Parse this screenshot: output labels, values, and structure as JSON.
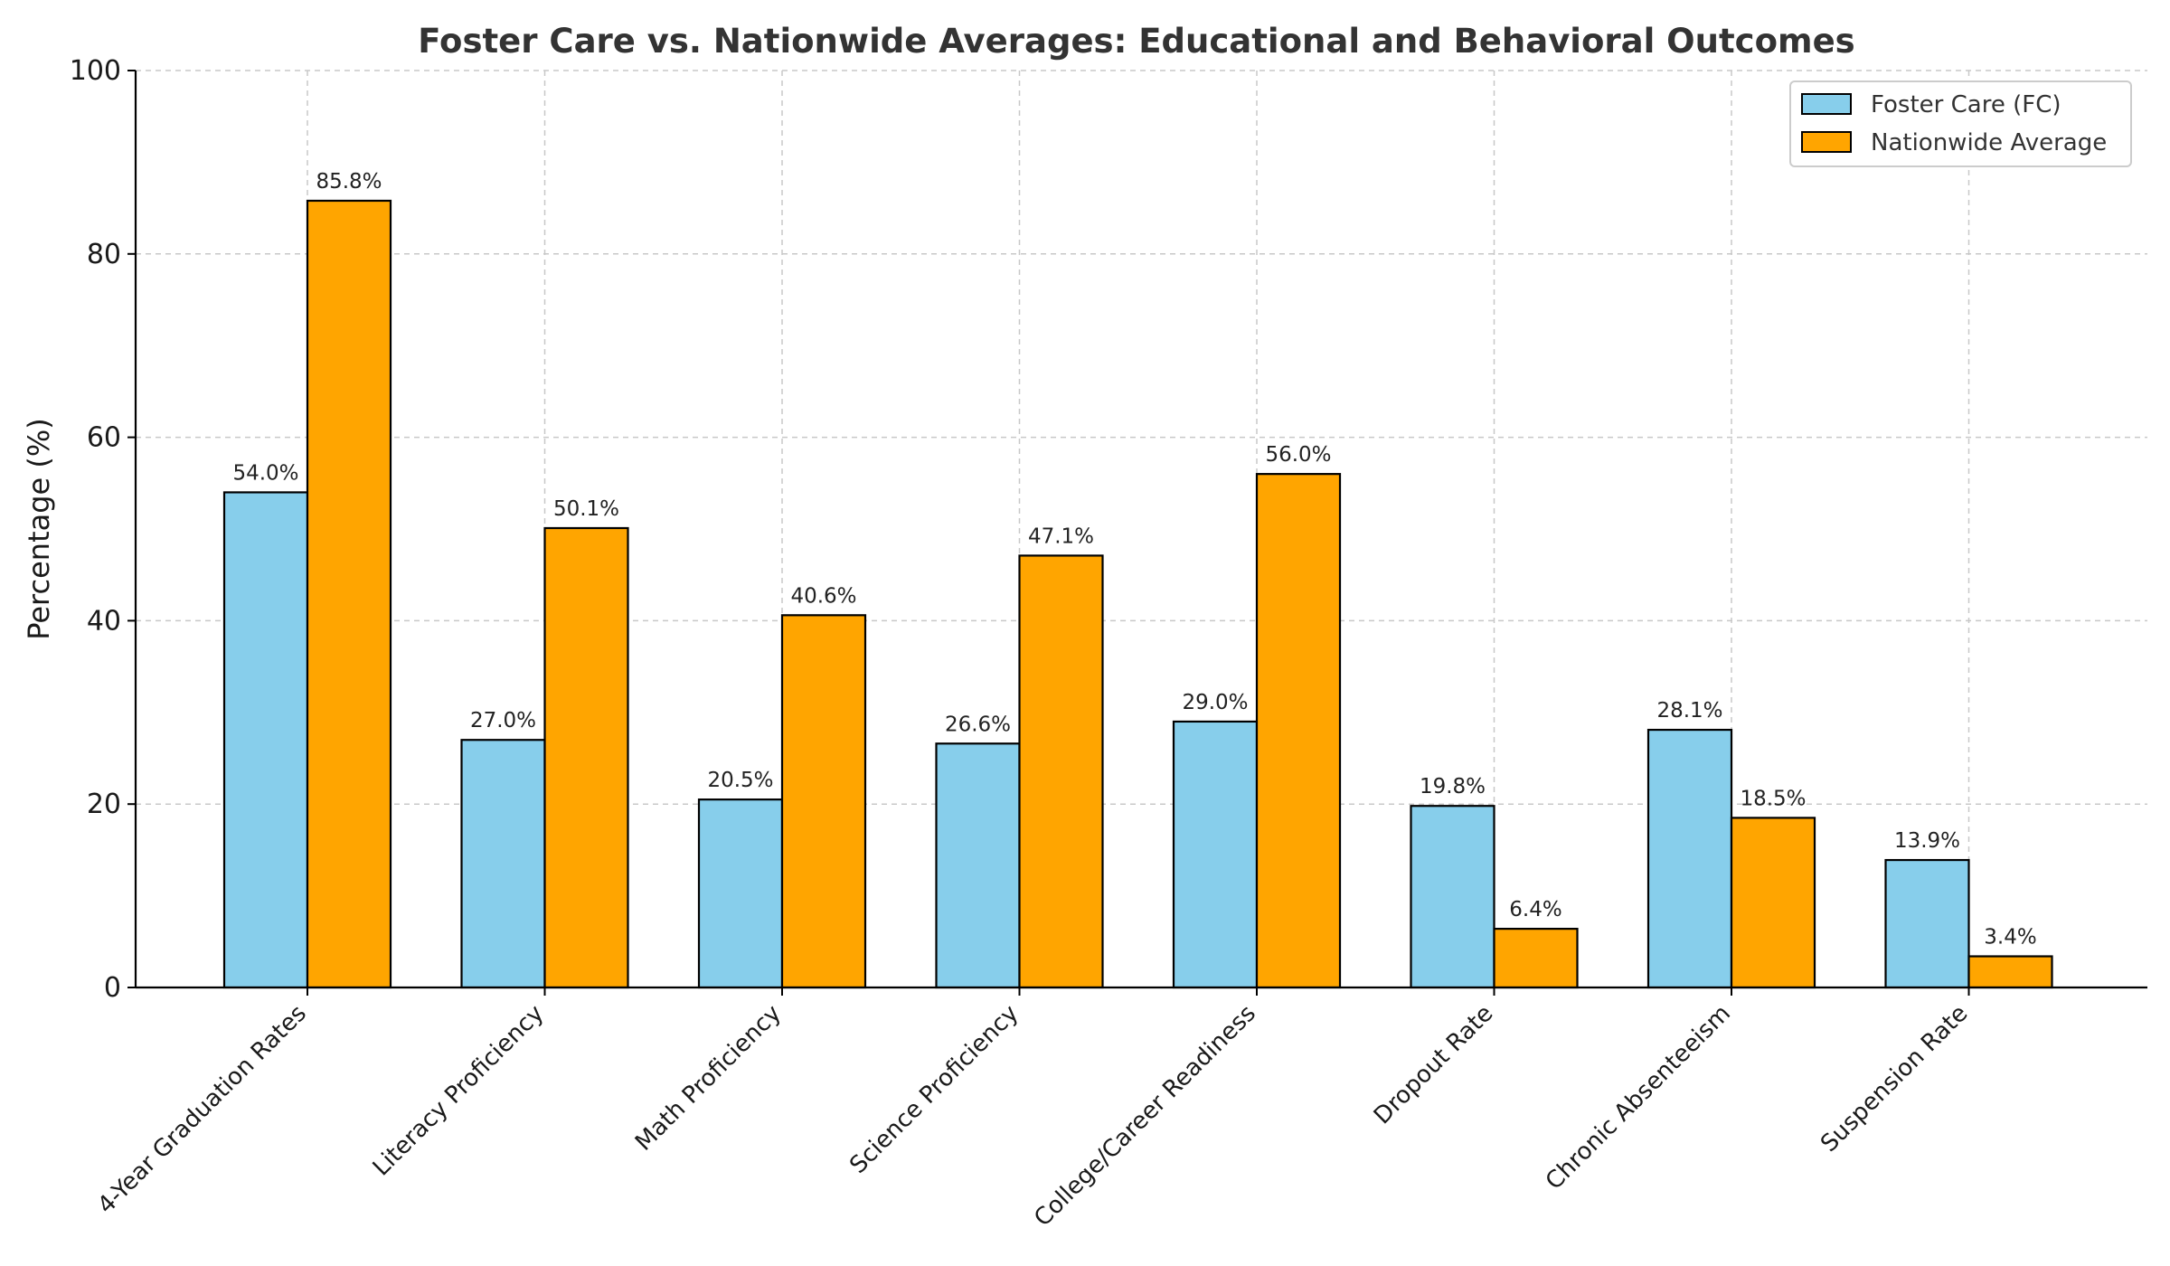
{
  "chart_data": {
    "type": "bar",
    "title": "Foster Care vs. Nationwide Averages: Educational and Behavioral Outcomes",
    "xlabel": "",
    "ylabel": "Percentage (%)",
    "ylim": [
      0,
      100
    ],
    "yticks": [
      0,
      20,
      40,
      60,
      80,
      100
    ],
    "grid": true,
    "legend_position": "top-right",
    "categories": [
      "4-Year Graduation Rates",
      "Literacy Proficiency",
      "Math Proficiency",
      "Science Proficiency",
      "College/Career Readiness",
      "Dropout Rate",
      "Chronic Absenteeism",
      "Suspension Rate"
    ],
    "series": [
      {
        "name": "Foster Care (FC)",
        "color": "#87ceeb",
        "values": [
          54.0,
          27.0,
          20.5,
          26.6,
          29.0,
          19.8,
          28.1,
          13.9
        ],
        "labels": [
          "54.0%",
          "27.0%",
          "20.5%",
          "26.6%",
          "29.0%",
          "19.8%",
          "28.1%",
          "13.9%"
        ]
      },
      {
        "name": "Nationwide Average",
        "color": "#ffa500",
        "values": [
          85.8,
          50.1,
          40.6,
          47.1,
          56.0,
          6.4,
          18.5,
          3.4
        ],
        "labels": [
          "85.8%",
          "50.1%",
          "40.6%",
          "47.1%",
          "56.0%",
          "6.4%",
          "18.5%",
          "3.4%"
        ]
      }
    ]
  }
}
